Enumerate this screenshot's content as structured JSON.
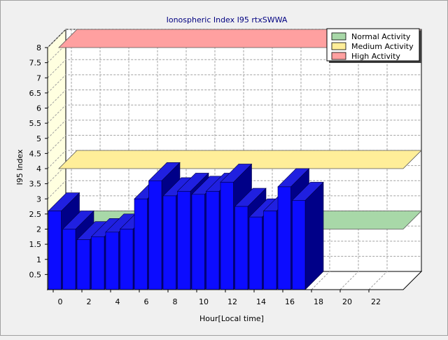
{
  "chart_data": {
    "type": "bar",
    "title": "Ionospheric Index I95 rtxSWWA",
    "xlabel": "Hour[Local time]",
    "ylabel": "I95 Index",
    "x": [
      0,
      1,
      2,
      3,
      4,
      5,
      6,
      7,
      8,
      9,
      10,
      11,
      12,
      13,
      14,
      15,
      16,
      17
    ],
    "values": [
      2.6,
      2.0,
      1.65,
      1.75,
      1.9,
      2.0,
      3.0,
      3.6,
      3.1,
      3.25,
      3.15,
      3.25,
      3.55,
      2.75,
      2.4,
      2.6,
      3.4,
      2.95
    ],
    "xlim": [
      0,
      24
    ],
    "ylim": [
      0,
      8
    ],
    "x_ticks": [
      "0",
      "2",
      "4",
      "6",
      "8",
      "10",
      "12",
      "14",
      "16",
      "18",
      "20",
      "22"
    ],
    "y_ticks": [
      "0.5",
      "1",
      "1.5",
      "2",
      "2.5",
      "3",
      "3.5",
      "4",
      "4.5",
      "5",
      "5.5",
      "6",
      "6.5",
      "7",
      "7.5",
      "8"
    ],
    "bands": [
      {
        "name": "Normal Activity",
        "level": 2.0,
        "color": "#a8d8a8"
      },
      {
        "name": "Medium Activity",
        "level": 4.0,
        "color": "#ffee99"
      },
      {
        "name": "High Activity",
        "level": 8.0,
        "color": "#ffa0a0"
      }
    ],
    "legend_position": "top-right",
    "grid": true,
    "bar_colors": {
      "front": "#0c0cff",
      "top": "#2020e0",
      "side": "#000088"
    }
  }
}
